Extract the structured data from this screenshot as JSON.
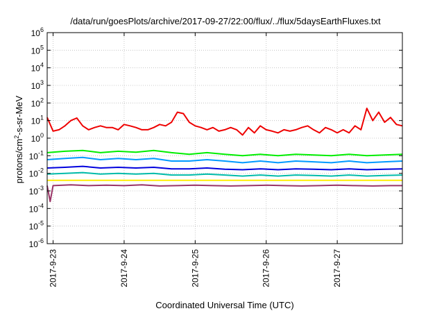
{
  "chart_data": {
    "type": "line",
    "title": "/data/run/goesPlots/archive/2017-09-27/22:00/flux/../flux/5daysEarthFluxes.txt",
    "xlabel": "Coordinated Universal Time (UTC)",
    "ylabel_parts": {
      "base": "protons/cm",
      "sup": "2",
      "rest": "-s-sr-MeV"
    },
    "y_scale": "log",
    "ylim": [
      1e-06,
      1000000.0
    ],
    "y_ticks": [
      {
        "value": 1e-06,
        "base": "10",
        "exp": "-6"
      },
      {
        "value": 1e-05,
        "base": "10",
        "exp": "-5"
      },
      {
        "value": 0.0001,
        "base": "10",
        "exp": "-4"
      },
      {
        "value": 0.001,
        "base": "10",
        "exp": "-3"
      },
      {
        "value": 0.01,
        "base": "10",
        "exp": "-2"
      },
      {
        "value": 0.1,
        "base": "10",
        "exp": "-1"
      },
      {
        "value": 1.0,
        "base": "10",
        "exp": "0"
      },
      {
        "value": 10.0,
        "base": "10",
        "exp": "1"
      },
      {
        "value": 100.0,
        "base": "10",
        "exp": "2"
      },
      {
        "value": 1000.0,
        "base": "10",
        "exp": "3"
      },
      {
        "value": 10000.0,
        "base": "10",
        "exp": "4"
      },
      {
        "value": 100000.0,
        "base": "10",
        "exp": "5"
      },
      {
        "value": 1000000.0,
        "base": "10",
        "exp": "6"
      }
    ],
    "xlim": [
      "2017-09-22T22:00",
      "2017-09-27T22:00"
    ],
    "x_ticks": [
      "2017-9-23",
      "2017-9-24",
      "2017-9-25",
      "2017-9-26",
      "2017-9-27"
    ],
    "grid": true,
    "legend": "none",
    "series": [
      {
        "color": "#ee0000",
        "x": [
          "2017-09-22T22:00",
          "2017-09-23T00:00",
          "2017-09-23T02:00",
          "2017-09-23T04:00",
          "2017-09-23T06:00",
          "2017-09-23T08:00",
          "2017-09-23T10:00",
          "2017-09-23T12:00",
          "2017-09-23T14:00",
          "2017-09-23T16:00",
          "2017-09-23T18:00",
          "2017-09-23T20:00",
          "2017-09-23T22:00",
          "2017-09-24T00:00",
          "2017-09-24T02:00",
          "2017-09-24T04:00",
          "2017-09-24T06:00",
          "2017-09-24T08:00",
          "2017-09-24T10:00",
          "2017-09-24T12:00",
          "2017-09-24T14:00",
          "2017-09-24T16:00",
          "2017-09-24T18:00",
          "2017-09-24T20:00",
          "2017-09-24T22:00",
          "2017-09-25T00:00",
          "2017-09-25T02:00",
          "2017-09-25T04:00",
          "2017-09-25T06:00",
          "2017-09-25T08:00",
          "2017-09-25T10:00",
          "2017-09-25T12:00",
          "2017-09-25T14:00",
          "2017-09-25T16:00",
          "2017-09-25T18:00",
          "2017-09-25T20:00",
          "2017-09-25T22:00",
          "2017-09-26T00:00",
          "2017-09-26T02:00",
          "2017-09-26T04:00",
          "2017-09-26T06:00",
          "2017-09-26T08:00",
          "2017-09-26T10:00",
          "2017-09-26T12:00",
          "2017-09-26T14:00",
          "2017-09-26T16:00",
          "2017-09-26T18:00",
          "2017-09-26T20:00",
          "2017-09-26T22:00",
          "2017-09-27T00:00",
          "2017-09-27T02:00",
          "2017-09-27T04:00",
          "2017-09-27T06:00",
          "2017-09-27T08:00",
          "2017-09-27T10:00",
          "2017-09-27T12:00",
          "2017-09-27T14:00",
          "2017-09-27T16:00",
          "2017-09-27T18:00",
          "2017-09-27T20:00",
          "2017-09-27T22:00"
        ],
        "values": [
          15,
          2.5,
          3,
          5,
          10,
          14,
          5,
          3,
          4,
          5,
          4,
          4,
          3,
          6,
          5,
          4,
          3,
          3,
          4,
          6,
          5,
          8,
          30,
          25,
          8,
          5,
          4,
          3,
          4,
          2.5,
          3,
          4,
          3,
          1.5,
          4,
          2,
          5,
          3,
          2.5,
          2,
          3,
          2.5,
          3,
          4,
          5,
          3,
          2,
          4,
          3,
          2,
          3,
          2,
          5,
          3,
          50,
          10,
          30,
          8,
          15,
          6,
          5
        ]
      },
      {
        "color": "#00ee00",
        "x": [
          "2017-09-22T22:00",
          "2017-09-23T04:00",
          "2017-09-23T10:00",
          "2017-09-23T16:00",
          "2017-09-23T22:00",
          "2017-09-24T04:00",
          "2017-09-24T10:00",
          "2017-09-24T16:00",
          "2017-09-24T22:00",
          "2017-09-25T04:00",
          "2017-09-25T10:00",
          "2017-09-25T16:00",
          "2017-09-25T22:00",
          "2017-09-26T04:00",
          "2017-09-26T10:00",
          "2017-09-26T16:00",
          "2017-09-26T22:00",
          "2017-09-27T04:00",
          "2017-09-27T10:00",
          "2017-09-27T16:00",
          "2017-09-27T22:00"
        ],
        "values": [
          0.15,
          0.18,
          0.2,
          0.15,
          0.18,
          0.16,
          0.2,
          0.15,
          0.12,
          0.15,
          0.12,
          0.1,
          0.12,
          0.1,
          0.12,
          0.11,
          0.1,
          0.12,
          0.1,
          0.11,
          0.12
        ]
      },
      {
        "color": "#0099ff",
        "x": [
          "2017-09-22T22:00",
          "2017-09-23T04:00",
          "2017-09-23T10:00",
          "2017-09-23T16:00",
          "2017-09-23T22:00",
          "2017-09-24T04:00",
          "2017-09-24T10:00",
          "2017-09-24T16:00",
          "2017-09-24T22:00",
          "2017-09-25T04:00",
          "2017-09-25T10:00",
          "2017-09-25T16:00",
          "2017-09-25T22:00",
          "2017-09-26T04:00",
          "2017-09-26T10:00",
          "2017-09-26T16:00",
          "2017-09-26T22:00",
          "2017-09-27T04:00",
          "2017-09-27T10:00",
          "2017-09-27T16:00",
          "2017-09-27T22:00"
        ],
        "values": [
          0.06,
          0.07,
          0.08,
          0.06,
          0.07,
          0.06,
          0.07,
          0.05,
          0.05,
          0.06,
          0.05,
          0.04,
          0.05,
          0.04,
          0.05,
          0.045,
          0.04,
          0.05,
          0.04,
          0.045,
          0.05
        ]
      },
      {
        "color": "#0000dd",
        "x": [
          "2017-09-22T22:00",
          "2017-09-23T04:00",
          "2017-09-23T10:00",
          "2017-09-23T16:00",
          "2017-09-23T22:00",
          "2017-09-24T04:00",
          "2017-09-24T10:00",
          "2017-09-24T16:00",
          "2017-09-24T22:00",
          "2017-09-25T04:00",
          "2017-09-25T10:00",
          "2017-09-25T16:00",
          "2017-09-25T22:00",
          "2017-09-26T04:00",
          "2017-09-26T10:00",
          "2017-09-26T16:00",
          "2017-09-26T22:00",
          "2017-09-27T04:00",
          "2017-09-27T10:00",
          "2017-09-27T16:00",
          "2017-09-27T22:00"
        ],
        "values": [
          0.02,
          0.022,
          0.025,
          0.02,
          0.022,
          0.02,
          0.022,
          0.018,
          0.018,
          0.02,
          0.017,
          0.016,
          0.018,
          0.016,
          0.018,
          0.017,
          0.016,
          0.018,
          0.016,
          0.017,
          0.018
        ]
      },
      {
        "color": "#00bbaa",
        "x": [
          "2017-09-22T22:00",
          "2017-09-23T04:00",
          "2017-09-23T10:00",
          "2017-09-23T16:00",
          "2017-09-23T22:00",
          "2017-09-24T04:00",
          "2017-09-24T10:00",
          "2017-09-24T16:00",
          "2017-09-24T22:00",
          "2017-09-25T04:00",
          "2017-09-25T10:00",
          "2017-09-25T16:00",
          "2017-09-25T22:00",
          "2017-09-26T04:00",
          "2017-09-26T10:00",
          "2017-09-26T16:00",
          "2017-09-26T22:00",
          "2017-09-27T04:00",
          "2017-09-27T10:00",
          "2017-09-27T16:00",
          "2017-09-27T22:00"
        ],
        "values": [
          0.009,
          0.01,
          0.011,
          0.009,
          0.01,
          0.009,
          0.01,
          0.008,
          0.008,
          0.009,
          0.008,
          0.007,
          0.008,
          0.007,
          0.008,
          0.0075,
          0.007,
          0.008,
          0.007,
          0.0075,
          0.008
        ]
      },
      {
        "color": "#ffee00",
        "x": [
          "2017-09-22T22:00",
          "2017-09-27T22:00"
        ],
        "values": [
          0.004,
          0.004
        ]
      },
      {
        "color": "#993366",
        "x": [
          "2017-09-22T22:00",
          "2017-09-22T23:00",
          "2017-09-23T00:00",
          "2017-09-23T06:00",
          "2017-09-23T12:00",
          "2017-09-23T18:00",
          "2017-09-24T00:00",
          "2017-09-24T06:00",
          "2017-09-24T12:00",
          "2017-09-24T18:00",
          "2017-09-25T00:00",
          "2017-09-25T06:00",
          "2017-09-25T12:00",
          "2017-09-25T18:00",
          "2017-09-26T00:00",
          "2017-09-26T06:00",
          "2017-09-26T12:00",
          "2017-09-26T18:00",
          "2017-09-27T00:00",
          "2017-09-27T06:00",
          "2017-09-27T12:00",
          "2017-09-27T18:00",
          "2017-09-27T22:00"
        ],
        "values": [
          0.002,
          0.00025,
          0.002,
          0.0022,
          0.002,
          0.0021,
          0.002,
          0.0022,
          0.0019,
          0.002,
          0.0021,
          0.002,
          0.0019,
          0.002,
          0.0021,
          0.002,
          0.0019,
          0.002,
          0.0021,
          0.002,
          0.0019,
          0.002,
          0.002
        ]
      }
    ]
  }
}
